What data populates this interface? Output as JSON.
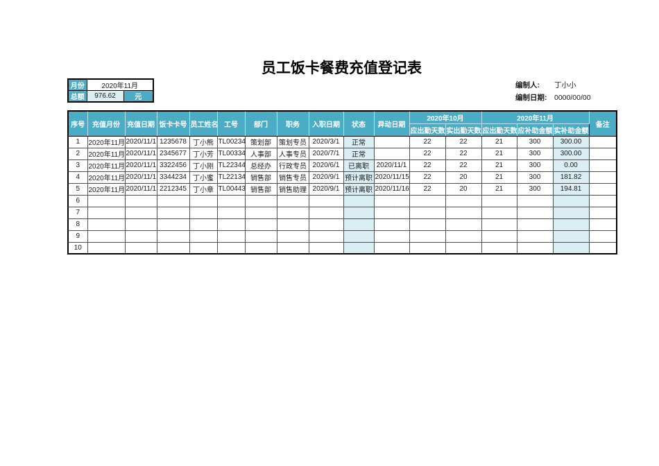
{
  "page": {
    "title": "员工饭卡餐费充值登记表"
  },
  "summary_box": {
    "month_label": "月份",
    "month_value": "2020年11月",
    "total_label": "总额",
    "total_value": "976.62",
    "unit_label": "元"
  },
  "meta": {
    "prepared_by_label": "编制人:",
    "prepared_by_value": "丁小小",
    "prepared_date_label": "编制日期:",
    "prepared_date_value": "0000/00/00"
  },
  "table": {
    "header": {
      "simple": [
        "序号",
        "充值月份",
        "充值日期",
        "饭卡卡号",
        "员工姓名",
        "工号",
        "部门",
        "职务",
        "入职日期",
        "状态",
        "异动日期"
      ],
      "groups": [
        {
          "label": "2020年10月",
          "children": [
            "应出勤天数",
            "实出勤天数"
          ]
        },
        {
          "label": "2020年11月",
          "children": [
            "应出勤天数",
            "应补助金额",
            "实补助金额"
          ]
        }
      ],
      "tail": "备注"
    },
    "rows": [
      [
        "1",
        "2020年11月",
        "2020/11/1",
        "1235678",
        "丁小熊",
        "TL00234",
        "策划部",
        "策划专员",
        "2020/3/1",
        "正常",
        "",
        "22",
        "22",
        "21",
        "300",
        "300.00",
        ""
      ],
      [
        "2",
        "2020年11月",
        "2020/11/1",
        "2345677",
        "丁小芳",
        "TL00334",
        "人事部",
        "人事专员",
        "2020/7/1",
        "正常",
        "",
        "22",
        "22",
        "21",
        "300",
        "300.00",
        ""
      ],
      [
        "3",
        "2020年11月",
        "2020/11/1",
        "3322456",
        "丁小刚",
        "TL22344",
        "总经办",
        "行政专员",
        "2020/6/1",
        "已离职",
        "2020/11/1",
        "22",
        "22",
        "21",
        "300",
        "0.00",
        ""
      ],
      [
        "4",
        "2020年11月",
        "2020/11/1",
        "3344234",
        "丁小蜜",
        "TL22134",
        "销售部",
        "销售专员",
        "2020/9/1",
        "预计离职",
        "2020/11/15",
        "22",
        "20",
        "21",
        "300",
        "181.82",
        ""
      ],
      [
        "5",
        "2020年11月",
        "2020/11/1",
        "2212345",
        "丁小章",
        "TL00443",
        "销售部",
        "销售助理",
        "2020/9/1",
        "预计离职",
        "2020/11/16",
        "22",
        "20",
        "21",
        "300",
        "194.81",
        ""
      ],
      [
        "6",
        "",
        "",
        "",
        "",
        "",
        "",
        "",
        "",
        "",
        "",
        "",
        "",
        "",
        "",
        "",
        ""
      ],
      [
        "7",
        "",
        "",
        "",
        "",
        "",
        "",
        "",
        "",
        "",
        "",
        "",
        "",
        "",
        "",
        "",
        ""
      ],
      [
        "8",
        "",
        "",
        "",
        "",
        "",
        "",
        "",
        "",
        "",
        "",
        "",
        "",
        "",
        "",
        "",
        ""
      ],
      [
        "9",
        "",
        "",
        "",
        "",
        "",
        "",
        "",
        "",
        "",
        "",
        "",
        "",
        "",
        "",
        "",
        ""
      ],
      [
        "10",
        "",
        "",
        "",
        "",
        "",
        "",
        "",
        "",
        "",
        "",
        "",
        "",
        "",
        "",
        "",
        ""
      ]
    ],
    "shaded_column_indices": [
      9,
      15
    ]
  },
  "colors": {
    "header_teal": "#4BACC6",
    "shade_blue": "#DAEEF3",
    "border_dark": "#000000"
  }
}
